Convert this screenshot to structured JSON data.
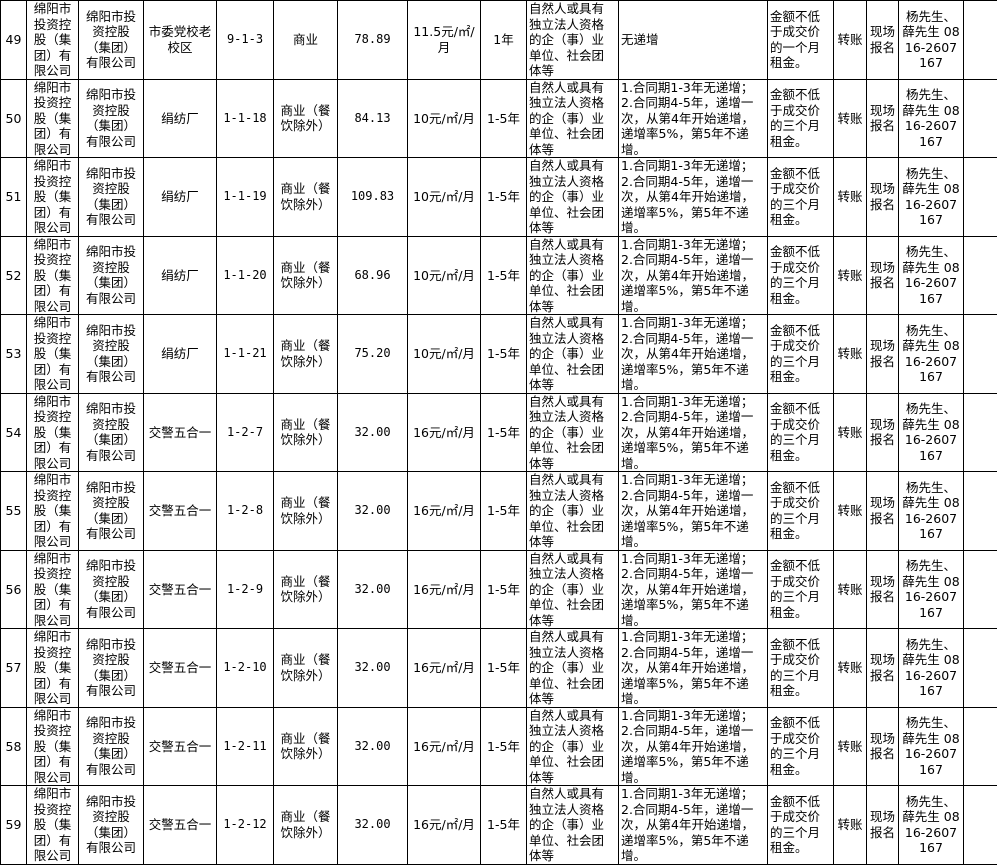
{
  "rows": [
    {
      "no": "49",
      "owner": "绵阳市投资控股（集团）有限公司",
      "operator": "绵阳市投资控股（集团）有限公司",
      "location": "市委党校老校区",
      "unit": "9-1-3",
      "use": "商业",
      "area": "78.89",
      "price": "11.5元/㎡/月",
      "term": "1年",
      "qualification": "自然人或具有独立法人资格的企（事）业单位、社会团体等",
      "increase": "无递增",
      "deposit": "金额不低于成交价的一个月租金。",
      "payment": "转账",
      "signup": "现场报名",
      "contact": "杨先生、薛先生 0816-2607167",
      "note": ""
    },
    {
      "no": "50",
      "owner": "绵阳市投资控股（集团）有限公司",
      "operator": "绵阳市投资控股（集团）有限公司",
      "location": "绢纺厂",
      "unit": "1-1-18",
      "use": "商业（餐饮除外）",
      "area": "84.13",
      "price": "10元/㎡/月",
      "term": "1-5年",
      "qualification": "自然人或具有独立法人资格的企（事）业单位、社会团体等",
      "increase": "1.合同期1-3年无递增；2.合同期4-5年，递增一次，从第4年开始递增，递增率5%，第5年不递增。",
      "deposit": "金额不低于成交价的三个月租金。",
      "payment": "转账",
      "signup": "现场报名",
      "contact": "杨先生、薛先生 0816-2607167",
      "note": ""
    },
    {
      "no": "51",
      "owner": "绵阳市投资控股（集团）有限公司",
      "operator": "绵阳市投资控股（集团）有限公司",
      "location": "绢纺厂",
      "unit": "1-1-19",
      "use": "商业（餐饮除外）",
      "area": "109.83",
      "price": "10元/㎡/月",
      "term": "1-5年",
      "qualification": "自然人或具有独立法人资格的企（事）业单位、社会团体等",
      "increase": "1.合同期1-3年无递增；2.合同期4-5年，递增一次，从第4年开始递增，递增率5%，第5年不递增。",
      "deposit": "金额不低于成交价的三个月租金。",
      "payment": "转账",
      "signup": "现场报名",
      "contact": "杨先生、薛先生 0816-2607167",
      "note": ""
    },
    {
      "no": "52",
      "owner": "绵阳市投资控股（集团）有限公司",
      "operator": "绵阳市投资控股（集团）有限公司",
      "location": "绢纺厂",
      "unit": "1-1-20",
      "use": "商业（餐饮除外）",
      "area": "68.96",
      "price": "10元/㎡/月",
      "term": "1-5年",
      "qualification": "自然人或具有独立法人资格的企（事）业单位、社会团体等",
      "increase": "1.合同期1-3年无递增；2.合同期4-5年，递增一次，从第4年开始递增，递增率5%，第5年不递增。",
      "deposit": "金额不低于成交价的三个月租金。",
      "payment": "转账",
      "signup": "现场报名",
      "contact": "杨先生、薛先生 0816-2607167",
      "note": ""
    },
    {
      "no": "53",
      "owner": "绵阳市投资控股（集团）有限公司",
      "operator": "绵阳市投资控股（集团）有限公司",
      "location": "绢纺厂",
      "unit": "1-1-21",
      "use": "商业（餐饮除外）",
      "area": "75.20",
      "price": "10元/㎡/月",
      "term": "1-5年",
      "qualification": "自然人或具有独立法人资格的企（事）业单位、社会团体等",
      "increase": "1.合同期1-3年无递增；2.合同期4-5年，递增一次，从第4年开始递增，递增率5%，第5年不递增。",
      "deposit": "金额不低于成交价的三个月租金。",
      "payment": "转账",
      "signup": "现场报名",
      "contact": "杨先生、薛先生 0816-2607167",
      "note": ""
    },
    {
      "no": "54",
      "owner": "绵阳市投资控股（集团）有限公司",
      "operator": "绵阳市投资控股（集团）有限公司",
      "location": "交警五合一",
      "unit": "1-2-7",
      "use": "商业（餐饮除外）",
      "area": "32.00",
      "price": "16元/㎡/月",
      "term": "1-5年",
      "qualification": "自然人或具有独立法人资格的企（事）业单位、社会团体等",
      "increase": "1.合同期1-3年无递增；2.合同期4-5年，递增一次，从第4年开始递增，递增率5%，第5年不递增。",
      "deposit": "金额不低于成交价的三个月租金。",
      "payment": "转账",
      "signup": "现场报名",
      "contact": "杨先生、薛先生 0816-2607167",
      "note": ""
    },
    {
      "no": "55",
      "owner": "绵阳市投资控股（集团）有限公司",
      "operator": "绵阳市投资控股（集团）有限公司",
      "location": "交警五合一",
      "unit": "1-2-8",
      "use": "商业（餐饮除外）",
      "area": "32.00",
      "price": "16元/㎡/月",
      "term": "1-5年",
      "qualification": "自然人或具有独立法人资格的企（事）业单位、社会团体等",
      "increase": "1.合同期1-3年无递增；2.合同期4-5年，递增一次，从第4年开始递增，递增率5%，第5年不递增。",
      "deposit": "金额不低于成交价的三个月租金。",
      "payment": "转账",
      "signup": "现场报名",
      "contact": "杨先生、薛先生 0816-2607167",
      "note": ""
    },
    {
      "no": "56",
      "owner": "绵阳市投资控股（集团）有限公司",
      "operator": "绵阳市投资控股（集团）有限公司",
      "location": "交警五合一",
      "unit": "1-2-9",
      "use": "商业（餐饮除外）",
      "area": "32.00",
      "price": "16元/㎡/月",
      "term": "1-5年",
      "qualification": "自然人或具有独立法人资格的企（事）业单位、社会团体等",
      "increase": "1.合同期1-3年无递增；2.合同期4-5年，递增一次，从第4年开始递增，递增率5%，第5年不递增。",
      "deposit": "金额不低于成交价的三个月租金。",
      "payment": "转账",
      "signup": "现场报名",
      "contact": "杨先生、薛先生 0816-2607167",
      "note": ""
    },
    {
      "no": "57",
      "owner": "绵阳市投资控股（集团）有限公司",
      "operator": "绵阳市投资控股（集团）有限公司",
      "location": "交警五合一",
      "unit": "1-2-10",
      "use": "商业（餐饮除外）",
      "area": "32.00",
      "price": "16元/㎡/月",
      "term": "1-5年",
      "qualification": "自然人或具有独立法人资格的企（事）业单位、社会团体等",
      "increase": "1.合同期1-3年无递增；2.合同期4-5年，递增一次，从第4年开始递增，递增率5%，第5年不递增。",
      "deposit": "金额不低于成交价的三个月租金。",
      "payment": "转账",
      "signup": "现场报名",
      "contact": "杨先生、薛先生 0816-2607167",
      "note": ""
    },
    {
      "no": "58",
      "owner": "绵阳市投资控股（集团）有限公司",
      "operator": "绵阳市投资控股（集团）有限公司",
      "location": "交警五合一",
      "unit": "1-2-11",
      "use": "商业（餐饮除外）",
      "area": "32.00",
      "price": "16元/㎡/月",
      "term": "1-5年",
      "qualification": "自然人或具有独立法人资格的企（事）业单位、社会团体等",
      "increase": "1.合同期1-3年无递增；2.合同期4-5年，递增一次，从第4年开始递增，递增率5%，第5年不递增。",
      "deposit": "金额不低于成交价的三个月租金。",
      "payment": "转账",
      "signup": "现场报名",
      "contact": "杨先生、薛先生 0816-2607167",
      "note": ""
    },
    {
      "no": "59",
      "owner": "绵阳市投资控股（集团）有限公司",
      "operator": "绵阳市投资控股（集团）有限公司",
      "location": "交警五合一",
      "unit": "1-2-12",
      "use": "商业（餐饮除外）",
      "area": "32.00",
      "price": "16元/㎡/月",
      "term": "1-5年",
      "qualification": "自然人或具有独立法人资格的企（事）业单位、社会团体等",
      "increase": "1.合同期1-3年无递增；2.合同期4-5年，递增一次，从第4年开始递增，递增率5%，第5年不递增。",
      "deposit": "金额不低于成交价的三个月租金。",
      "payment": "转账",
      "signup": "现场报名",
      "contact": "杨先生、薛先生 0816-2607167",
      "note": ""
    }
  ]
}
